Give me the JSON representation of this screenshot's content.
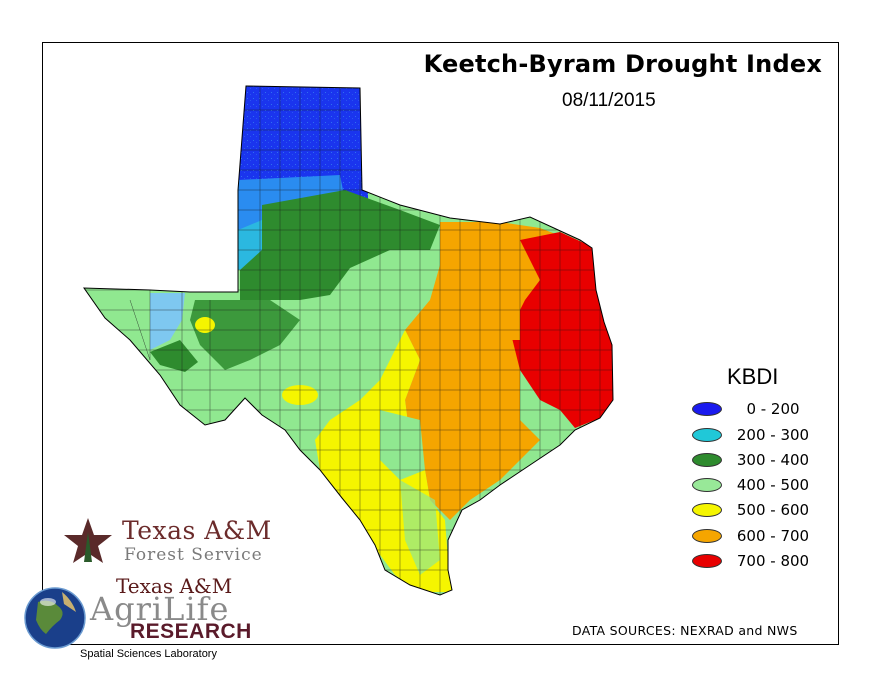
{
  "map": {
    "title": "Keetch-Byram Drought Index",
    "date": "08/11/2015",
    "data_sources": "DATA SOURCES: NEXRAD and NWS"
  },
  "legend": {
    "title": "KBDI",
    "items": [
      {
        "range": "0 - 200",
        "color": "#1a1aee"
      },
      {
        "range": "200 - 300",
        "color": "#20c8d8"
      },
      {
        "range": "300 - 400",
        "color": "#2e8b2e"
      },
      {
        "range": "400 - 500",
        "color": "#98e898"
      },
      {
        "range": "500 - 600",
        "color": "#f5f500"
      },
      {
        "range": "600 - 700",
        "color": "#f5a500"
      },
      {
        "range": "700 - 800",
        "color": "#e80000"
      }
    ]
  },
  "logos": {
    "forest_service_line1": "Texas A&M",
    "forest_service_line2": "Forest Service",
    "agrilife_line1": "Texas A&M",
    "agrilife_line2": "AgriLife",
    "agrilife_line3": "RESEARCH",
    "lab_name": "Spatial Sciences Laboratory"
  }
}
